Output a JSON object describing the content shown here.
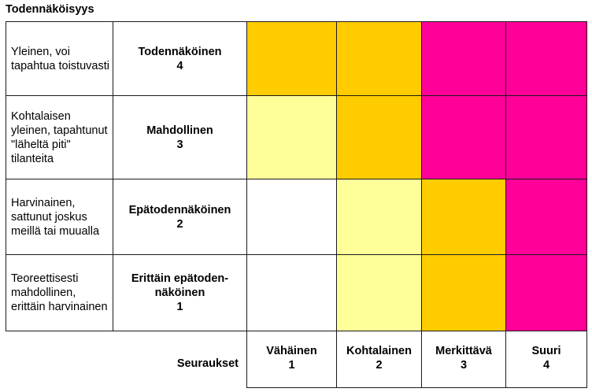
{
  "title": "Todennäköisyys",
  "colors": {
    "white": "#ffffff",
    "light_yellow": "#ffff99",
    "orange": "#ffcc00",
    "magenta": "#ff0099"
  },
  "rows": [
    {
      "description": "Yleinen, voi tapahtua toistuvasti",
      "level_label": "Todennäköinen",
      "level_number": "4",
      "cells": [
        "orange",
        "orange",
        "magenta",
        "magenta"
      ]
    },
    {
      "description": "Kohtalaisen yleinen, tapahtunut \"läheltä piti\" tilanteita",
      "level_label": "Mahdollinen",
      "level_number": "3",
      "cells": [
        "light_yellow",
        "orange",
        "magenta",
        "magenta"
      ]
    },
    {
      "description": "Harvinainen, sattunut joskus meillä tai muualla",
      "level_label": "Epätodennäköinen",
      "level_number": "2",
      "cells": [
        "white",
        "light_yellow",
        "orange",
        "magenta"
      ]
    },
    {
      "description": "Teoreettisesti mahdollinen, erittäin harvinainen",
      "level_label": "Erittäin epätoden-näköinen",
      "level_number": "1",
      "cells": [
        "white",
        "light_yellow",
        "orange",
        "magenta"
      ]
    }
  ],
  "consequences_label": "Seuraukset",
  "consequences": [
    {
      "label": "Vähäinen",
      "number": "1"
    },
    {
      "label": "Kohtalainen",
      "number": "2"
    },
    {
      "label": "Merkittävä",
      "number": "3"
    },
    {
      "label": "Suuri",
      "number": "4"
    }
  ]
}
